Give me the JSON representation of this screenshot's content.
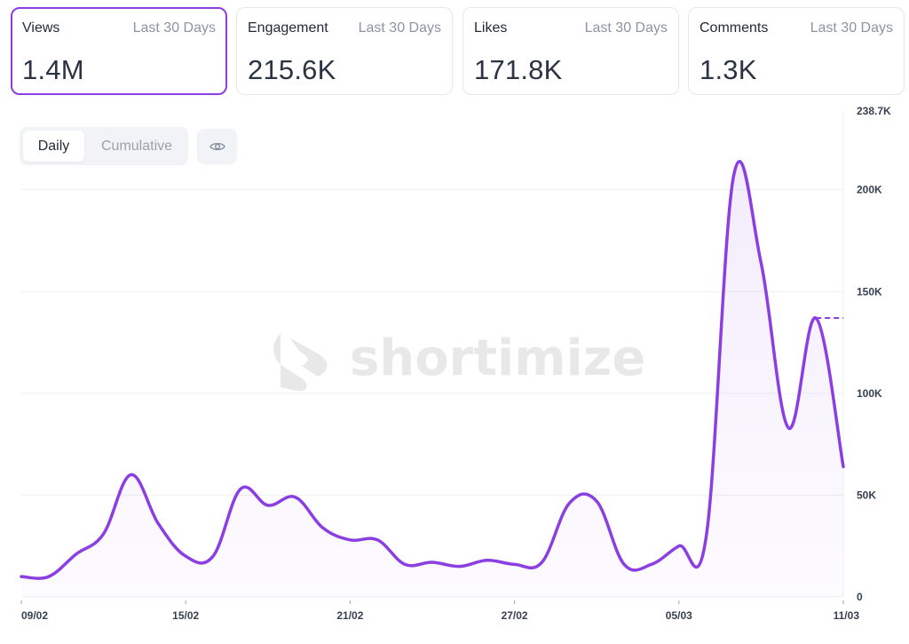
{
  "cards": [
    {
      "label": "Views",
      "period": "Last 30 Days",
      "value": "1.4M",
      "active": true
    },
    {
      "label": "Engagement",
      "period": "Last 30 Days",
      "value": "215.6K",
      "active": false
    },
    {
      "label": "Likes",
      "period": "Last 30 Days",
      "value": "171.8K",
      "active": false
    },
    {
      "label": "Comments",
      "period": "Last 30 Days",
      "value": "1.3K",
      "active": false
    }
  ],
  "toggle": {
    "daily": "Daily",
    "cumulative": "Cumulative",
    "selected": "Daily"
  },
  "visibility_icon": "eye-icon",
  "watermark": "shortimize",
  "accent_color": "#8b3fe0",
  "chart_data": {
    "type": "area",
    "x": [
      "09/02",
      "10/02",
      "11/02",
      "12/02",
      "13/02",
      "14/02",
      "15/02",
      "16/02",
      "17/02",
      "18/02",
      "19/02",
      "20/02",
      "21/02",
      "22/02",
      "23/02",
      "24/02",
      "25/02",
      "26/02",
      "27/02",
      "28/02",
      "01/03",
      "02/03",
      "03/03",
      "04/03",
      "05/03",
      "06/03",
      "07/03",
      "08/03",
      "09/03",
      "10/03",
      "11/03"
    ],
    "series": [
      {
        "values": [
          10000,
          10000,
          21000,
          31000,
          60000,
          36000,
          20000,
          20000,
          53000,
          45000,
          49000,
          34000,
          28000,
          28000,
          16000,
          17000,
          15000,
          18000,
          16000,
          17000,
          46000,
          47000,
          16000,
          16000,
          25000,
          30000,
          207000,
          164000,
          83000,
          137000,
          64000
        ]
      }
    ],
    "x_tick_labels": [
      "09/02",
      "15/02",
      "21/02",
      "27/02",
      "05/03",
      "11/03"
    ],
    "y_tick_labels": [
      "0",
      "50K",
      "100K",
      "150K",
      "200K",
      "238.7K"
    ],
    "ylim": [
      0,
      238700
    ],
    "reference_value": 137000,
    "grid": true,
    "y_axis_position": "right",
    "color": "#8b3fe0"
  }
}
